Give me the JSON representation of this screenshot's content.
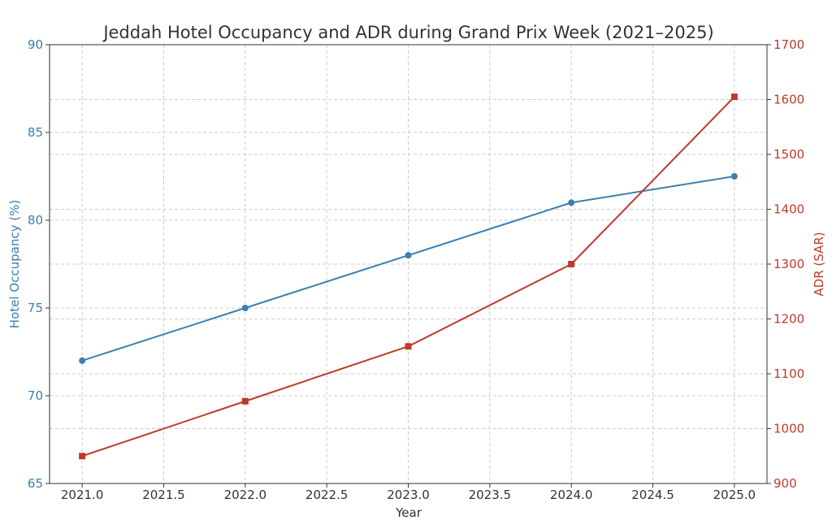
{
  "chart_data": {
    "type": "line",
    "title": "Jeddah Hotel Occupancy and ADR during Grand Prix Week (2021–2025)",
    "xlabel": "Year",
    "x": [
      2021,
      2022,
      2023,
      2024,
      2025
    ],
    "xlim": [
      2020.8,
      2025.2
    ],
    "xticks": [
      "2021.0",
      "2021.5",
      "2022.0",
      "2022.5",
      "2023.0",
      "2023.5",
      "2024.0",
      "2024.5",
      "2025.0"
    ],
    "xtick_values": [
      2021.0,
      2021.5,
      2022.0,
      2022.5,
      2023.0,
      2023.5,
      2024.0,
      2024.5,
      2025.0
    ],
    "grid": true,
    "left_axis": {
      "label": "Hotel Occupancy (%)",
      "color": "#3a7fb0",
      "ylim": [
        65,
        90
      ],
      "ticks": [
        65,
        70,
        75,
        80,
        85,
        90
      ]
    },
    "right_axis": {
      "label": "ADR (SAR)",
      "color": "#c0392b",
      "ylim": [
        900,
        1700
      ],
      "ticks": [
        900,
        1000,
        1100,
        1200,
        1300,
        1400,
        1500,
        1600,
        1700
      ]
    },
    "series": [
      {
        "axis": "left",
        "marker": "circle",
        "color": "#3a7fb0",
        "values": [
          72,
          75,
          78,
          81,
          82.5
        ]
      },
      {
        "axis": "right",
        "marker": "square",
        "color": "#c0392b",
        "values": [
          950,
          1050,
          1150,
          1300,
          1605
        ]
      }
    ]
  }
}
